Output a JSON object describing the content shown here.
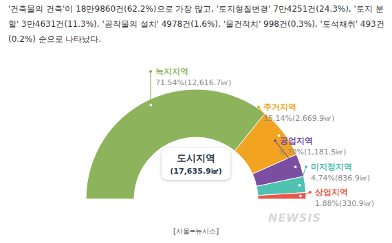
{
  "text": "'건축물의 건축'이 18만9860건(62.2%)으로 가장 많고, '토지형질변경' 7만4251건(24.3%), '토지 분할' 3만4631건(11.3%), '공작물의 설치' 4978건(1.6%), '물건적치' 998건(0.3%), '토석채취' 493건(0.2%) 순으로 나타났다.",
  "chart_data": {
    "type": "pie",
    "title": "도시지역",
    "subtitle": "(17,635.9㎢)",
    "categories": [
      "녹지지역",
      "주거지역",
      "공업지역",
      "미지정지역",
      "상업지역"
    ],
    "values": [
      71.54,
      15.14,
      6.7,
      4.74,
      1.88
    ],
    "value_labels": [
      "71.54%(12,616.7㎢)",
      "15.14%(2,669.9㎢)",
      "6.70%(1,181.5㎢)",
      "4.74%(836.9㎢)",
      "1.88%(330.9㎢)"
    ],
    "colors": [
      "#8db35c",
      "#f2a31f",
      "#7c4ea1",
      "#4fc2b2",
      "#e9574a"
    ],
    "data_labels": true
  },
  "source": "[서울=뉴시스]",
  "watermark": "NEWSIS"
}
